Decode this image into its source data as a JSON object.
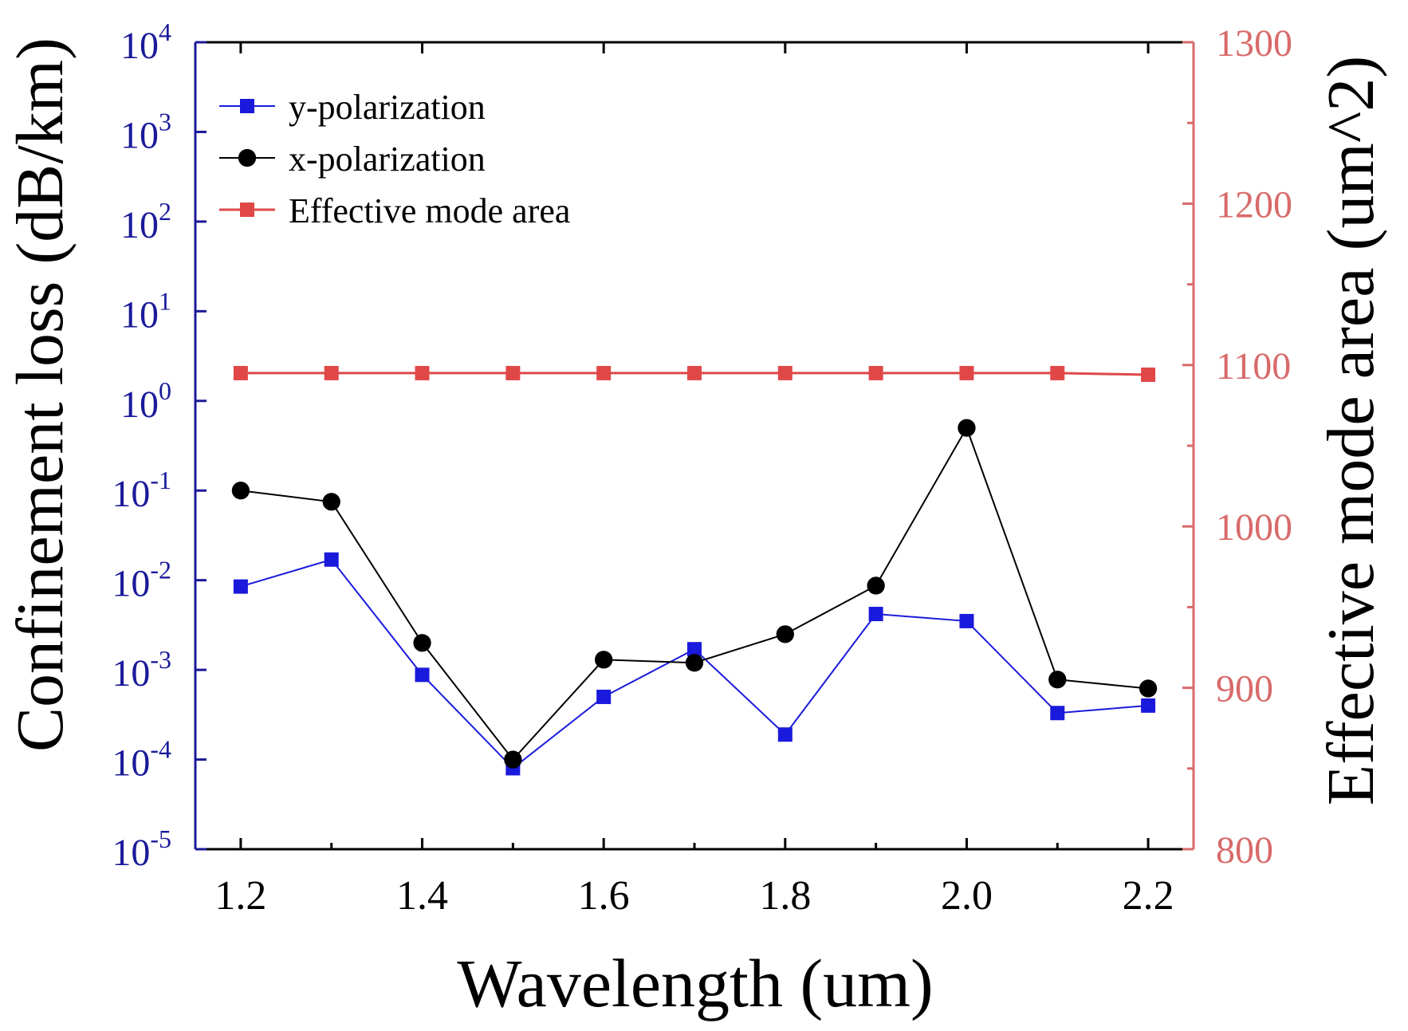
{
  "chart_data": {
    "type": "line",
    "title": "",
    "xlabel": "Wavelength (um)",
    "ylabel_left": "Confinement loss (dB/km)",
    "ylabel_right": "Effective mode area (um^2)",
    "x": [
      1.2,
      1.3,
      1.4,
      1.5,
      1.6,
      1.7,
      1.8,
      1.9,
      2.0,
      2.1,
      2.2
    ],
    "xlim": [
      1.15,
      2.25
    ],
    "x_ticks": [
      1.2,
      1.4,
      1.6,
      1.8,
      2.0,
      2.2
    ],
    "x_tick_labels": [
      "1.2",
      "1.4",
      "1.6",
      "1.8",
      "2.0",
      "2.2"
    ],
    "y_left_scale": "log",
    "y_left_lim": [
      1e-05,
      10000.0
    ],
    "y_left_tick_labels": [
      {
        "base": "10",
        "exp": "-5"
      },
      {
        "base": "10",
        "exp": "-4"
      },
      {
        "base": "10",
        "exp": "-3"
      },
      {
        "base": "10",
        "exp": "-2"
      },
      {
        "base": "10",
        "exp": "-1"
      },
      {
        "base": "10",
        "exp": "0"
      },
      {
        "base": "10",
        "exp": "1"
      },
      {
        "base": "10",
        "exp": "2"
      },
      {
        "base": "10",
        "exp": "3"
      },
      {
        "base": "10",
        "exp": "4"
      }
    ],
    "y_right_lim": [
      800,
      1300
    ],
    "y_right_ticks": [
      800,
      900,
      1000,
      1100,
      1200,
      1300
    ],
    "y_right_tick_labels": [
      "800",
      "900",
      "1000",
      "1100",
      "1200",
      "1300"
    ],
    "grid": false,
    "legend_position": "top-left",
    "series": [
      {
        "name": "y-polarization",
        "axis": "left",
        "marker": "square",
        "color": "#1a1adc",
        "values": [
          0.0085,
          0.017,
          0.00088,
          8e-05,
          0.0005,
          0.0017,
          0.00019,
          0.0042,
          0.0035,
          0.00033,
          0.0004
        ]
      },
      {
        "name": "x-polarization",
        "axis": "left",
        "marker": "circle",
        "color": "#000000",
        "values": [
          0.1,
          0.075,
          0.002,
          0.0001,
          0.0013,
          0.0012,
          0.0025,
          0.0087,
          0.5,
          0.00078,
          0.00062
        ]
      },
      {
        "name": "Effective mode area",
        "axis": "right",
        "marker": "square",
        "color": "#e04848",
        "values": [
          1095,
          1095,
          1095,
          1095,
          1095,
          1095,
          1095,
          1095,
          1095,
          1095,
          1094
        ]
      }
    ]
  },
  "colors": {
    "left_axis": "#1a1a9a",
    "right_axis": "#d86a6a",
    "frame": "#000000"
  }
}
